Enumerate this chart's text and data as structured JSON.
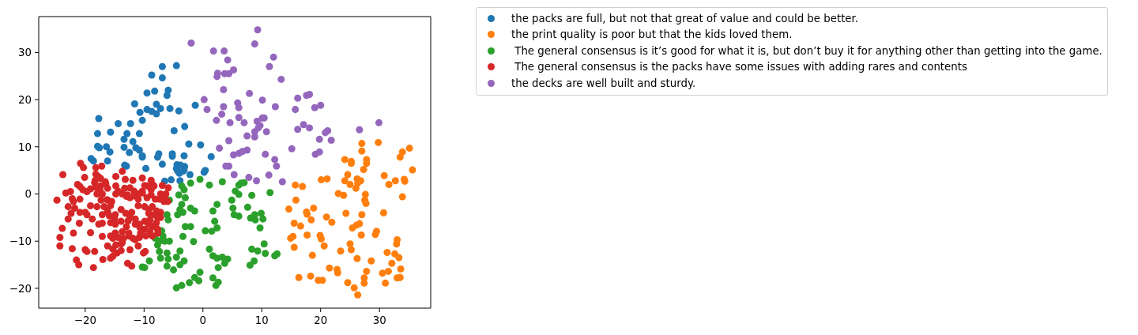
{
  "chart_data": {
    "type": "scatter",
    "xlim": [
      -27.9,
      38.7
    ],
    "ylim": [
      -24.2,
      37.6
    ],
    "xticks": [
      -20,
      -10,
      0,
      10,
      20,
      30
    ],
    "yticks": [
      -20,
      -10,
      0,
      10,
      20,
      30
    ],
    "legend": "top right",
    "marker": "circle",
    "series": [
      {
        "name": "the packs are full, but not that great of value and could be better.",
        "color": "#1f77b4",
        "x": [
          -6.9,
          -4.5,
          -8.7,
          -6.9,
          -9.5,
          -8.2,
          -5.9,
          -6.1,
          -11.6,
          -7.9,
          -10.7,
          -9.5,
          -8.7,
          -7.9,
          -7.2,
          -5.6,
          -4.1,
          -1.3,
          -17.7,
          -10.3,
          -14.4,
          -12.3,
          -3.1,
          -4.9,
          -17.9,
          -15.7,
          -12.9,
          -10.8,
          -13.4,
          -11.9,
          -17.9,
          -17.6,
          -16.4,
          -15.8,
          -13.4,
          -12.5,
          -11.4,
          -10.8,
          -2.4,
          -0.4,
          -7.5,
          -5.2,
          -5.2,
          -3.2,
          1.4,
          -10.3,
          -7.7,
          -19.0,
          -18.6,
          -16.2,
          -13.0,
          -9.7,
          -6.9,
          -4.4,
          -3.1,
          -2.2,
          -3.2,
          -4.3,
          -4.0,
          -5.4,
          -6.5,
          0.2,
          0.4,
          -3.9,
          -3.8,
          -4.5,
          -10.3,
          -13.3,
          -3.4
        ],
        "values": [
          27.0,
          27.2,
          25.2,
          24.6,
          21.4,
          21.8,
          22.0,
          20.9,
          19.1,
          19.0,
          17.3,
          17.9,
          17.5,
          17.0,
          18.1,
          18.1,
          17.6,
          18.8,
          16.0,
          15.6,
          14.9,
          14.9,
          14.3,
          13.4,
          12.8,
          13.1,
          12.8,
          12.8,
          11.6,
          11.1,
          10.1,
          9.8,
          10.0,
          8.9,
          9.9,
          8.8,
          9.8,
          9.3,
          10.6,
          10.4,
          8.5,
          8.5,
          8.0,
          8.1,
          7.9,
          7.8,
          7.8,
          7.5,
          7.0,
          7.0,
          5.9,
          5.4,
          6.3,
          6.2,
          5.8,
          4.1,
          5.1,
          4.9,
          4.4,
          3.0,
          2.7,
          4.6,
          5.0,
          2.8,
          6.1,
          5.4,
          8.1,
          6.1,
          4.8
        ]
      },
      {
        "name": "the print quality is poor but that the kids loved them.",
        "color": "#ff7f0e",
        "x": [
          27.0,
          27.0,
          29.8,
          35.1,
          33.9,
          33.5,
          24.1,
          25.2,
          27.8,
          25.2,
          27.8,
          27.3,
          35.6,
          24.6,
          24.1,
          26.2,
          26.8,
          25.0,
          26.0,
          26.3,
          20.1,
          21.1,
          30.8,
          31.6,
          32.7,
          34.2,
          34.3,
          33.9,
          15.7,
          16.9,
          23.0,
          23.9,
          27.6,
          27.5,
          27.7,
          15.8,
          14.6,
          17.6,
          17.7,
          18.8,
          18.4,
          21.0,
          21.9,
          24.3,
          27.0,
          30.7,
          15.5,
          16.6,
          25.4,
          26.1,
          26.6,
          17.7,
          19.9,
          20.1,
          20.6,
          14.9,
          15.3,
          15.5,
          26.9,
          29.3,
          29.5,
          33.0,
          32.9,
          25.0,
          25.2,
          23.4,
          18.6,
          26.2,
          28.6,
          31.3,
          32.6,
          33.3,
          32.1,
          33.6,
          21.5,
          22.8,
          22.9,
          27.8,
          30.5,
          31.5,
          33.0,
          33.5,
          16.3,
          18.3,
          19.6,
          20.3,
          27.4,
          27.4,
          31.0,
          24.6,
          25.7,
          26.3
        ],
        "values": [
          10.7,
          9.1,
          10.9,
          9.7,
          8.9,
          7.8,
          7.3,
          6.9,
          7.3,
          6.5,
          6.5,
          5.2,
          5.1,
          4.1,
          2.8,
          3.2,
          2.8,
          2.0,
          1.2,
          2.3,
          3.0,
          3.2,
          3.9,
          2.0,
          2.8,
          3.1,
          2.7,
          -0.6,
          1.9,
          1.6,
          0.1,
          -0.3,
          -0.1,
          -1.3,
          -2.0,
          -1.3,
          -3.2,
          -3.8,
          -4.3,
          -3.0,
          -5.5,
          -4.9,
          -6.0,
          -4.1,
          -4.4,
          -4.0,
          -6.2,
          -6.8,
          -7.2,
          -6.6,
          -6.3,
          -8.7,
          -8.8,
          -9.5,
          -11.0,
          -9.4,
          -9.0,
          -11.3,
          -8.7,
          -8.6,
          -7.9,
          -9.7,
          -10.6,
          -10.6,
          -11.8,
          -12.1,
          -13.0,
          -13.7,
          -14.2,
          -12.4,
          -12.7,
          -13.5,
          -14.7,
          -15.9,
          -15.7,
          -16.0,
          -16.7,
          -16.4,
          -16.8,
          -16.4,
          -17.8,
          -17.7,
          -17.7,
          -17.4,
          -18.3,
          -18.3,
          -17.8,
          -18.9,
          -18.9,
          -18.8,
          -19.9,
          -21.4
        ]
      },
      {
        "name": " The general consensus is it’s good for what it is, but don’t buy it for anything other than getting into the game.",
        "color": "#2ca02c",
        "x": [
          -3.6,
          -3.2,
          -4.1,
          -3.0,
          -5.7,
          -3.6,
          -3.9,
          -4.3,
          -3.4,
          -2.1,
          -1.4,
          -6.1,
          -5.9,
          -3.0,
          -2.1,
          -3.4,
          -1.6,
          -7.0,
          -6.8,
          -8.1,
          -7.4,
          -6.5,
          -5.7,
          -7.7,
          -7.4,
          -6.1,
          -7.2,
          -5.9,
          -4.5,
          -3.2,
          -3.9,
          -5.0,
          -6.1,
          -10.3,
          -9.9,
          -9.1,
          -3.9,
          -0.5,
          -1.4,
          -0.7,
          -2.3,
          -3.6,
          -4.5,
          1.1,
          1.7,
          2.4,
          3.3,
          4.2,
          3.7,
          2.6,
          1.7,
          2.6,
          2.2,
          -2.1,
          -0.5,
          1.1,
          3.3,
          2.0,
          2.4,
          0.4,
          1.5,
          2.4,
          1.7,
          4.9,
          5.1,
          5.3,
          5.5,
          6.1,
          6.5,
          7.0,
          6.1,
          8.3,
          11.4,
          6.1,
          7.6,
          8.1,
          8.8,
          8.9,
          9.9,
          10.2,
          9.7,
          10.4,
          8.3,
          9.3,
          10.6,
          12.2,
          12.6,
          8.7,
          8.0
        ],
        "values": [
          1.7,
          0.9,
          -0.2,
          -0.8,
          -1.3,
          -2.2,
          -3.3,
          -4.4,
          -3.9,
          -3.0,
          -3.6,
          -4.4,
          -5.5,
          -6.9,
          -6.9,
          -9.0,
          -10.1,
          -7.8,
          -8.9,
          -9.4,
          -10.0,
          -10.0,
          -10.0,
          -10.8,
          -12.2,
          -12.5,
          -13.6,
          -13.8,
          -13.4,
          -14.2,
          -15.0,
          -16.1,
          -15.3,
          -15.5,
          -15.6,
          -14.2,
          -12.1,
          -16.6,
          -17.7,
          -18.4,
          -18.8,
          -19.4,
          -19.9,
          -11.7,
          -13.1,
          -13.6,
          -13.4,
          -13.8,
          -14.7,
          -15.6,
          -17.8,
          -18.7,
          -19.4,
          2.3,
          3.1,
          1.9,
          2.6,
          -5.8,
          -7.2,
          -7.8,
          -7.9,
          -2.2,
          -3.6,
          -1.3,
          -3.0,
          -4.4,
          0.6,
          1.9,
          2.3,
          2.4,
          -0.1,
          -0.3,
          0.3,
          -4.7,
          -2.8,
          -5.1,
          -4.4,
          -5.5,
          -4.1,
          -5.3,
          -7.2,
          -10.6,
          -11.7,
          -12.1,
          -12.6,
          -13.1,
          -12.7,
          -14.2,
          -15.1
        ]
      },
      {
        "name": " The general consensus is the packs have some issues with adding rares and contents",
        "color": "#d62728",
        "x": [
          -20.8,
          -20.3,
          -18.2,
          -17.2,
          -23.8,
          -20.1,
          -18.2,
          -17.4,
          -18.3,
          -14.8,
          -13.7,
          -13.2,
          -11.9,
          -10.3,
          -8.8,
          -8.6,
          -6.9,
          -9.5,
          -21.3,
          -20.9,
          -23.3,
          -22.5,
          -22.2,
          -22.0,
          -24.8,
          -19.7,
          -19.1,
          -18.2,
          -17.4,
          -16.5,
          -16.2,
          -18.0,
          -17.1,
          -16.3,
          -14.8,
          -14.4,
          -13.7,
          -13.0,
          -12.4,
          -11.7,
          -11.0,
          -10.3,
          -9.5,
          -8.8,
          -8.1,
          -7.2,
          -6.5,
          -6.0,
          -21.8,
          -20.9,
          -20.0,
          -19.7,
          -22.4,
          -22.9,
          -23.9,
          -19.1,
          -18.0,
          -17.3,
          -16.2,
          -15.7,
          -17.1,
          -15.9,
          -14.9,
          -13.9,
          -13.1,
          -12.1,
          -11.0,
          -9.9,
          -8.6,
          -7.9,
          -7.2,
          -18.8,
          -17.1,
          -15.7,
          -14.9,
          -13.9,
          -12.7,
          -11.5,
          -10.8,
          -9.9,
          -9.0,
          -8.1,
          -7.7,
          -9.0,
          -9.7,
          -8.6,
          -21.0,
          -22.0,
          -24.3,
          -24.3,
          -22.2,
          -20.0,
          -18.4,
          -19.1,
          -17.1,
          -15.7,
          -14.9,
          -15.3,
          -13.7,
          -12.6,
          -11.9,
          -10.8,
          -16.2,
          -14.8,
          -13.7,
          -13.9,
          -15.3,
          -15.7,
          -12.4,
          -11.0,
          -9.8,
          -17.0,
          -18.6,
          -21.5,
          -21.1,
          -12.8,
          -12.1,
          -9.9,
          -9.2,
          -8.6,
          -7.9,
          -7.7,
          -8.3,
          -9.2,
          -7.2,
          -22.9,
          -19.7,
          -20.4,
          -20.9,
          -17.8,
          -16.6,
          -8.3,
          -8.8,
          -5.9,
          -17.5,
          -15.5,
          -16.8,
          -16.2,
          -17.7,
          -15.0,
          -12.4,
          -14.8,
          -12.8,
          -11.0,
          -13.3,
          -11.7,
          -12.4,
          -7.4,
          -6.3,
          -6.6,
          -9.2,
          -11.5,
          -10.7,
          -10.6,
          -7.7,
          -14.4,
          -13.5,
          -13.9,
          -15.3,
          -14.6,
          -11.5,
          -10.1,
          -13.0,
          -12.6,
          -18.4,
          -9.9,
          -10.3
        ],
        "values": [
          6.5,
          5.6,
          5.6,
          5.9,
          4.1,
          3.5,
          4.2,
          3.3,
          2.9,
          3.7,
          4.8,
          3.1,
          2.9,
          3.4,
          2.9,
          2.0,
          1.8,
          1.7,
          2.0,
          1.6,
          0.2,
          0.5,
          -1.0,
          -1.6,
          -1.3,
          0.5,
          1.1,
          1.4,
          1.7,
          2.1,
          1.2,
          0.0,
          0.0,
          -1.2,
          1.7,
          0.6,
          0.0,
          -0.5,
          -0.8,
          -0.4,
          0.0,
          0.2,
          -0.8,
          -0.2,
          -1.1,
          0.0,
          -0.8,
          -1.6,
          -3.0,
          -3.9,
          -3.9,
          -4.4,
          -4.1,
          -5.3,
          -7.3,
          -2.5,
          -2.7,
          -1.3,
          -1.3,
          -2.5,
          -4.4,
          -4.6,
          -4.4,
          -3.3,
          -4.1,
          -3.9,
          -2.5,
          -2.7,
          -2.7,
          -3.6,
          -3.9,
          -5.3,
          -6.2,
          -6.1,
          -6.4,
          -5.8,
          -5.7,
          -5.3,
          -6.4,
          -5.8,
          -5.5,
          -6.6,
          -7.5,
          -7.9,
          -8.9,
          -8.9,
          -6.2,
          -8.3,
          -9.2,
          -11.0,
          -11.6,
          -11.8,
          -12.2,
          -8.2,
          -9.0,
          -8.9,
          -8.3,
          -9.4,
          -8.0,
          -8.9,
          -9.4,
          -9.2,
          -11.0,
          -10.8,
          -10.3,
          -12.0,
          -13.2,
          -13.6,
          -11.8,
          -11.0,
          -12.2,
          -13.9,
          -15.6,
          -14.0,
          -15.0,
          -14.7,
          -15.3,
          -7.5,
          -6.4,
          -6.9,
          -6.1,
          -5.0,
          -4.4,
          -4.1,
          -5.0,
          -2.7,
          -12.2,
          0.9,
          -1.1,
          3.7,
          2.6,
          1.7,
          0.9,
          1.3,
          0.9,
          -1.6,
          -2.7,
          -3.7,
          -6.4,
          -5.3,
          -5.0,
          0.0,
          -0.2,
          -1.1,
          1.2,
          0.6,
          1.3,
          -1.1,
          0.0,
          -1.6,
          -3.3,
          -6.4,
          -7.1,
          -8.3,
          -8.3,
          -9.2,
          -9.4,
          -10.6,
          -11.7,
          -12.5,
          -9.7,
          -12.5,
          -6.9,
          -8.3,
          2.4,
          1.8,
          0.6
        ]
      },
      {
        "name": "the decks are well built and sturdy.",
        "color": "#9467bd",
        "x": [
          -2.0,
          1.8,
          3.6,
          4.2,
          2.5,
          2.4,
          3.7,
          4.4,
          5.2,
          3.5,
          0.2,
          0.7,
          3.5,
          3.2,
          2.3,
          4.6,
          4.4,
          2.8,
          5.2,
          9.3,
          8.8,
          12.0,
          11.3,
          13.3,
          7.9,
          10.1,
          5.9,
          6.1,
          12.3,
          16.1,
          17.6,
          18.1,
          15.7,
          19.0,
          20.0,
          6.1,
          7.0,
          9.2,
          10.4,
          10.1,
          9.7,
          9.4,
          10.8,
          8.8,
          8.8,
          7.5,
          16.1,
          17.1,
          18.1,
          20.8,
          21.2,
          19.8,
          21.8,
          6.1,
          6.7,
          7.5,
          10.6,
          12.2,
          15.1,
          19.1,
          19.8,
          26.6,
          29.9,
          12.5,
          4.4,
          5.3,
          7.8,
          9.1,
          11.2,
          13.5,
          3.9
        ],
        "values": [
          32.0,
          30.3,
          30.3,
          28.4,
          25.6,
          24.9,
          25.5,
          25.5,
          26.3,
          22.1,
          20.0,
          17.9,
          18.5,
          16.9,
          15.6,
          15.1,
          11.3,
          9.7,
          8.3,
          34.8,
          31.8,
          29.0,
          27.0,
          24.3,
          21.3,
          19.9,
          19.3,
          18.3,
          18.5,
          20.3,
          20.9,
          21.1,
          17.9,
          18.3,
          18.8,
          16.2,
          15.1,
          15.4,
          16.1,
          16.1,
          14.5,
          14.0,
          13.2,
          13.2,
          12.1,
          12.3,
          13.7,
          14.7,
          14.0,
          13.0,
          13.4,
          11.6,
          11.4,
          8.6,
          9.0,
          9.3,
          8.4,
          7.3,
          9.6,
          8.4,
          8.9,
          13.6,
          15.1,
          5.9,
          5.9,
          4.1,
          3.5,
          2.8,
          4.0,
          2.6,
          5.9
        ]
      }
    ]
  }
}
